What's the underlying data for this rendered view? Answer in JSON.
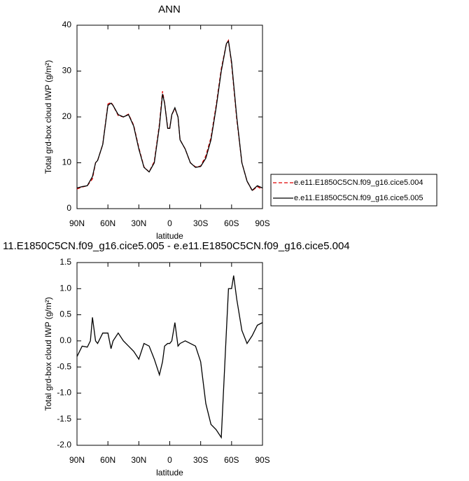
{
  "chart_data": [
    {
      "type": "line",
      "title": "ANN",
      "x_label": "latitude",
      "y_label": "Total grd-box cloud IWP (g/m²)",
      "x": [
        90,
        85,
        80,
        75,
        72,
        70,
        65,
        60,
        57,
        55,
        50,
        45,
        40,
        35,
        30,
        25,
        20,
        15,
        10,
        7,
        5,
        2,
        0,
        -2,
        -5,
        -8,
        -10,
        -15,
        -20,
        -25,
        -30,
        -35,
        -40,
        -45,
        -50,
        -55,
        -57,
        -60,
        -65,
        -70,
        -75,
        -80,
        -85,
        -90
      ],
      "xlim": [
        90,
        -90
      ],
      "xticks": [
        {
          "value": 90,
          "label": "90N"
        },
        {
          "value": 60,
          "label": "60N"
        },
        {
          "value": 30,
          "label": "30N"
        },
        0,
        {
          "value": -30,
          "label": "30S"
        },
        {
          "value": -60,
          "label": "60S"
        },
        {
          "value": -90,
          "label": "90S"
        }
      ],
      "ylim": [
        0,
        40
      ],
      "yticks": [
        0,
        10,
        20,
        30,
        40
      ],
      "legend": "outside-right",
      "series": [
        {
          "name": "e.e11.E1850C5CN.f09_g16.cice5.004",
          "color": "#e00000",
          "dash": true,
          "values": [
            4.3,
            4.7,
            5,
            6.5,
            10,
            10.5,
            14,
            22.8,
            23.2,
            22.5,
            20.3,
            20,
            20.6,
            18.2,
            13.3,
            9.1,
            8,
            10.3,
            18.5,
            25.6,
            23,
            17.6,
            17.5,
            20.5,
            21.8,
            20,
            15,
            13,
            10,
            9.1,
            9.3,
            11.5,
            15.5,
            22.5,
            30.5,
            36,
            36.7,
            31.5,
            19.5,
            10,
            6,
            3.9,
            4.8,
            4.2
          ]
        },
        {
          "name": "e.e11.E1850C5CN.f09_g16.cice5.005",
          "color": "#000000",
          "dash": false,
          "values": [
            4.5,
            4.8,
            5,
            7,
            10,
            10.5,
            14,
            22.5,
            23,
            22.5,
            20.5,
            20,
            20.5,
            18,
            13,
            9,
            8,
            10,
            18,
            25,
            23,
            17.5,
            17.5,
            20.5,
            22,
            20,
            15,
            13,
            10,
            9,
            9.2,
            11,
            15,
            22,
            30,
            36,
            36.5,
            32,
            20,
            10,
            6,
            4,
            5,
            4.5
          ]
        }
      ]
    },
    {
      "type": "line",
      "title": "11.E1850C5CN.f09_g16.cice5.005 - e.e11.E1850C5CN.f09_g16.cice5.004",
      "x_label": "latitude",
      "y_label": "Total grd-box cloud IWP (g/m²)",
      "x": [
        90,
        85,
        80,
        77,
        75,
        72,
        70,
        65,
        60,
        57,
        55,
        50,
        45,
        40,
        35,
        30,
        25,
        20,
        15,
        10,
        7,
        5,
        2,
        0,
        -2,
        -5,
        -8,
        -10,
        -15,
        -20,
        -25,
        -30,
        -35,
        -40,
        -45,
        -50,
        -55,
        -57,
        -60,
        -62,
        -65,
        -70,
        -75,
        -80,
        -85,
        -90
      ],
      "xlim": [
        90,
        -90
      ],
      "xticks": [
        {
          "value": 90,
          "label": "90N"
        },
        {
          "value": 60,
          "label": "60N"
        },
        {
          "value": 30,
          "label": "30N"
        },
        0,
        {
          "value": -30,
          "label": "30S"
        },
        {
          "value": -60,
          "label": "60S"
        },
        {
          "value": -90,
          "label": "90S"
        }
      ],
      "ylim": [
        -2,
        1.5
      ],
      "yticks": [
        {
          "value": -2,
          "label": "-2.0"
        },
        -1.5,
        {
          "value": -1,
          "label": "-1.0"
        },
        -0.5,
        {
          "value": 0,
          "label": "0.0"
        },
        0.5,
        {
          "value": 1,
          "label": "1.0"
        },
        1.5
      ],
      "series": [
        {
          "color": "#000000",
          "dash": false,
          "values": [
            -0.3,
            -0.1,
            -0.12,
            0.0,
            0.45,
            0.0,
            -0.05,
            0.15,
            0.15,
            -0.15,
            0.0,
            0.15,
            0.0,
            -0.1,
            -0.2,
            -0.35,
            -0.05,
            -0.1,
            -0.35,
            -0.65,
            -0.4,
            -0.1,
            -0.05,
            -0.05,
            0.0,
            0.35,
            -0.1,
            -0.05,
            0.0,
            -0.05,
            -0.1,
            -0.4,
            -1.2,
            -1.6,
            -1.7,
            -1.85,
            0.2,
            1.0,
            1.0,
            1.25,
            0.8,
            0.2,
            -0.05,
            0.1,
            0.3,
            0.35
          ]
        }
      ]
    }
  ]
}
